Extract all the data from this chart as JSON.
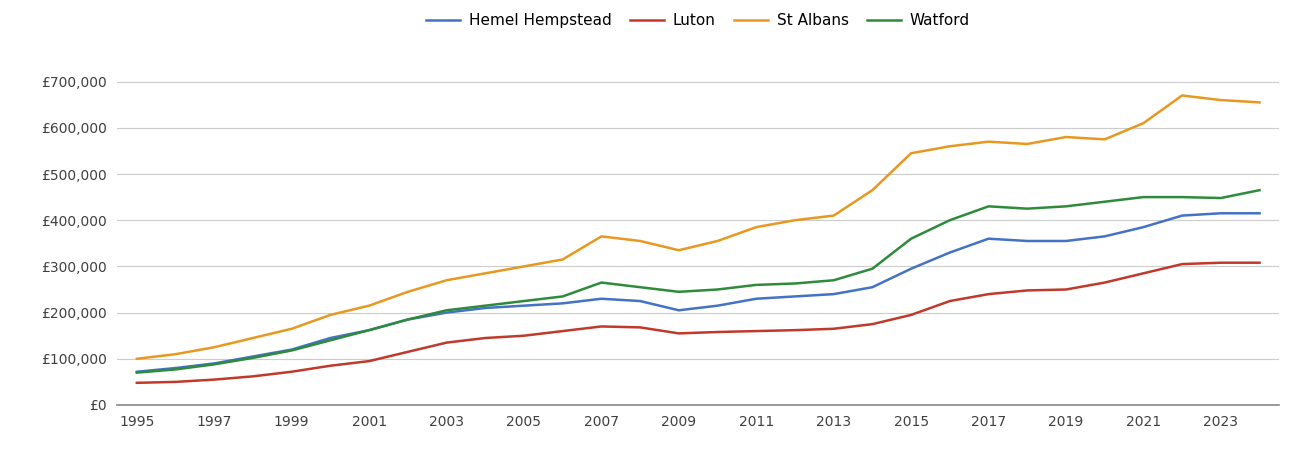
{
  "years": [
    1995,
    1996,
    1997,
    1998,
    1999,
    2000,
    2001,
    2002,
    2003,
    2004,
    2005,
    2006,
    2007,
    2008,
    2009,
    2010,
    2011,
    2012,
    2013,
    2014,
    2015,
    2016,
    2017,
    2018,
    2019,
    2020,
    2021,
    2022,
    2023,
    2024
  ],
  "hemel_hempstead": [
    72000,
    80000,
    90000,
    105000,
    120000,
    145000,
    162000,
    185000,
    200000,
    210000,
    215000,
    220000,
    230000,
    225000,
    205000,
    215000,
    230000,
    235000,
    240000,
    255000,
    295000,
    330000,
    360000,
    355000,
    355000,
    365000,
    385000,
    410000,
    415000,
    415000
  ],
  "luton": [
    48000,
    50000,
    55000,
    62000,
    72000,
    85000,
    95000,
    115000,
    135000,
    145000,
    150000,
    160000,
    170000,
    168000,
    155000,
    158000,
    160000,
    162000,
    165000,
    175000,
    195000,
    225000,
    240000,
    248000,
    250000,
    265000,
    285000,
    305000,
    308000,
    308000
  ],
  "st_albans": [
    100000,
    110000,
    125000,
    145000,
    165000,
    195000,
    215000,
    245000,
    270000,
    285000,
    300000,
    315000,
    365000,
    355000,
    335000,
    355000,
    385000,
    400000,
    410000,
    465000,
    545000,
    560000,
    570000,
    565000,
    580000,
    575000,
    610000,
    670000,
    660000,
    655000
  ],
  "watford": [
    70000,
    77000,
    88000,
    102000,
    118000,
    140000,
    162000,
    185000,
    205000,
    215000,
    225000,
    235000,
    265000,
    255000,
    245000,
    250000,
    260000,
    263000,
    270000,
    295000,
    360000,
    400000,
    430000,
    425000,
    430000,
    440000,
    450000,
    450000,
    448000,
    465000
  ],
  "colors": {
    "hemel_hempstead": "#4472C4",
    "luton": "#C0392B",
    "st_albans": "#E89820",
    "watford": "#2E8B3C"
  },
  "legend_labels": [
    "Hemel Hempstead",
    "Luton",
    "St Albans",
    "Watford"
  ],
  "ylim": [
    0,
    750000
  ],
  "yticks": [
    0,
    100000,
    200000,
    300000,
    400000,
    500000,
    600000,
    700000
  ],
  "background_color": "#ffffff",
  "grid_color": "#cccccc",
  "line_width": 1.8,
  "font_color": "#404040",
  "tick_fontsize": 10,
  "legend_fontsize": 11
}
